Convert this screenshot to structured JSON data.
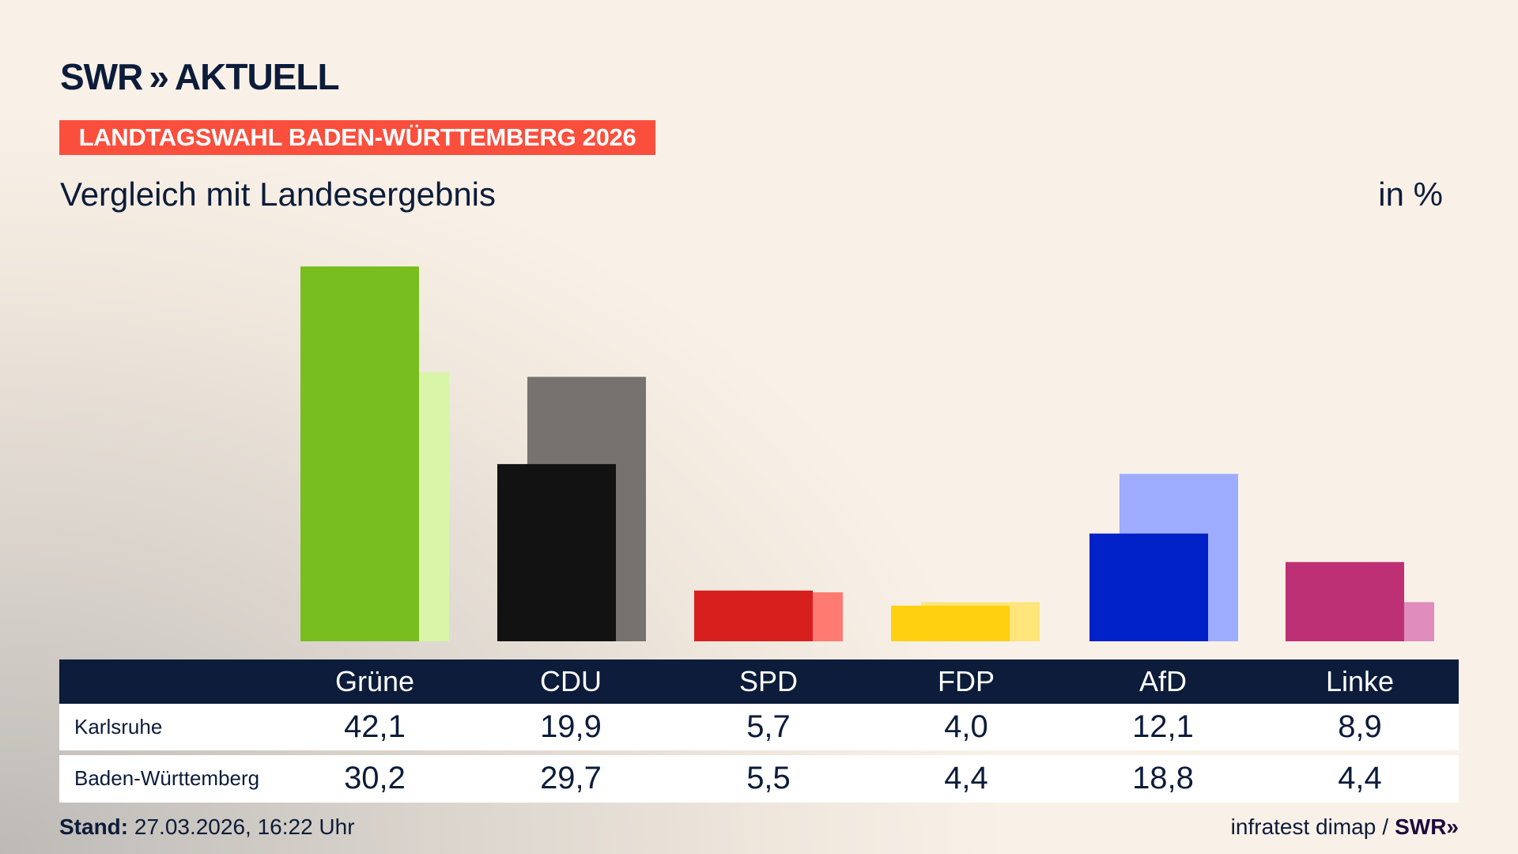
{
  "logo": {
    "text": "SWR",
    "chevrons": "»",
    "suffix": "AKTUELL"
  },
  "banner": "LANDTAGSWAHL BADEN-WÜRTTEMBERG 2026",
  "subtitle": "Vergleich mit Landesergebnis",
  "unit": "in %",
  "chart_data": {
    "type": "bar",
    "categories": [
      "Grüne",
      "CDU",
      "SPD",
      "FDP",
      "AfD",
      "Linke"
    ],
    "series": [
      {
        "name": "Karlsruhe",
        "values": [
          42.1,
          19.9,
          5.7,
          4.0,
          12.1,
          8.9
        ],
        "colors": [
          "#78be1e",
          "#121212",
          "#d7201e",
          "#ffd00f",
          "#0020c8",
          "#be3075"
        ]
      },
      {
        "name": "Baden-Württemberg",
        "values": [
          30.2,
          29.7,
          5.5,
          4.4,
          18.8,
          4.4
        ],
        "colors": [
          "#d8f5a8",
          "#75726f",
          "#ff7b72",
          "#ffe57a",
          "#9eacff",
          "#e08cbc"
        ]
      }
    ],
    "value_labels": {
      "Karlsruhe": [
        "42,1",
        "19,9",
        "5,7",
        "4,0",
        "12,1",
        "8,9"
      ],
      "Baden-Württemberg": [
        "30,2",
        "29,7",
        "5,5",
        "4,4",
        "18,8",
        "4,4"
      ]
    },
    "ylim": [
      0,
      45
    ],
    "grid": false
  },
  "footer": {
    "stand_label": "Stand:",
    "stand_value": "27.03.2026, 16:22 Uhr",
    "source": "infratest dimap",
    "separator": "/",
    "source_logo": "SWR»"
  }
}
